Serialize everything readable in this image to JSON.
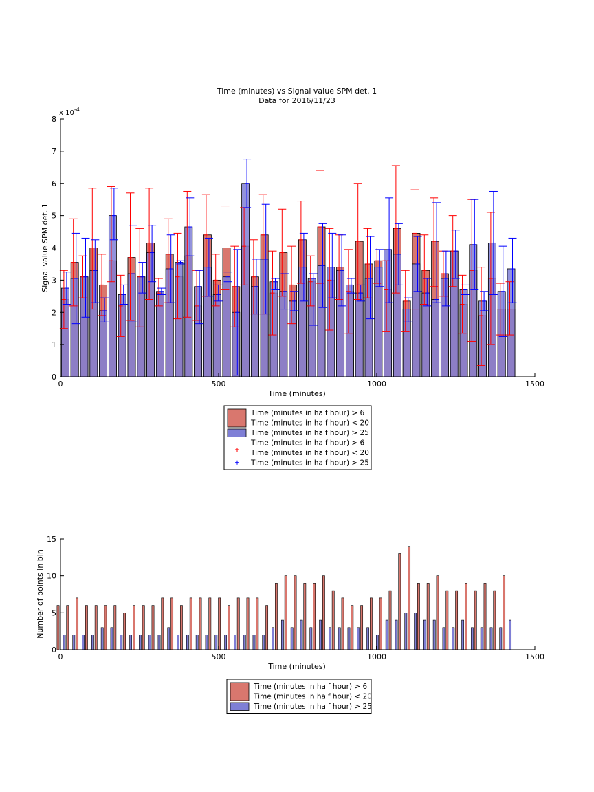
{
  "figure_colors": {
    "red_bar": "#d9776e",
    "blue_bar": "#7f7fd6",
    "red_err": "#ff0000",
    "blue_err": "#0000ff",
    "bar_edge": "#000000"
  },
  "chart_data": [
    {
      "type": "bar",
      "title": "Time (minutes) vs Signal value SPM det. 1",
      "subtitle": "Data for 2016/11/23",
      "xlabel": "Time (minutes)",
      "ylabel": "Signal value SPM det. 1",
      "exponent_label": "x 10",
      "exponent_power": "-4",
      "xlim": [
        0,
        1500
      ],
      "ylim": [
        0,
        8
      ],
      "xticks": [
        0,
        500,
        1000,
        1500
      ],
      "yticks": [
        0,
        1,
        2,
        3,
        4,
        5,
        6,
        7,
        8
      ],
      "x_centers": [
        15,
        45,
        75,
        105,
        135,
        165,
        195,
        225,
        255,
        285,
        315,
        345,
        375,
        405,
        435,
        465,
        495,
        525,
        555,
        585,
        615,
        645,
        675,
        705,
        735,
        765,
        795,
        825,
        855,
        885,
        915,
        945,
        975,
        1005,
        1035,
        1065,
        1095,
        1125,
        1155,
        1185,
        1215,
        1245,
        1275,
        1305,
        1335,
        1365,
        1395,
        1425
      ],
      "series": [
        {
          "name": "Time (minutes in half hour) > 6\nTime (minutes in half hour) < 20",
          "values": [
            2.4,
            3.55,
            3.1,
            4.0,
            2.85,
            3.6,
            2.2,
            3.7,
            3.1,
            4.15,
            2.6,
            3.8,
            3.1,
            3.75,
            2.2,
            4.4,
            3.0,
            4.0,
            2.8,
            4.05,
            3.1,
            4.4,
            2.6,
            3.85,
            2.85,
            4.25,
            2.95,
            4.65,
            3.0,
            3.4,
            2.65,
            4.2,
            3.5,
            3.6,
            2.7,
            4.6,
            2.35,
            4.45,
            3.3,
            4.2,
            3.2,
            3.9,
            2.25,
            3.3,
            1.9,
            3.05,
            2.1,
            2.1
          ],
          "err_low": [
            1.5,
            2.2,
            2.45,
            2.1,
            1.9,
            2.95,
            1.25,
            1.75,
            1.55,
            2.4,
            2.2,
            2.3,
            1.8,
            1.85,
            1.75,
            2.5,
            2.2,
            2.7,
            1.55,
            2.85,
            1.95,
            1.95,
            1.3,
            2.5,
            1.65,
            2.9,
            2.2,
            2.9,
            1.45,
            2.4,
            1.35,
            2.4,
            2.45,
            2.9,
            1.4,
            2.6,
            1.4,
            2.1,
            2.25,
            2.8,
            2.5,
            2.8,
            1.35,
            1.1,
            0.35,
            1.0,
            1.3,
            1.3
          ],
          "err_high": [
            3.3,
            4.9,
            3.75,
            5.85,
            3.8,
            5.9,
            3.15,
            5.7,
            4.6,
            5.85,
            3.05,
            4.9,
            4.45,
            5.75,
            3.3,
            5.65,
            3.8,
            5.3,
            4.05,
            5.25,
            4.25,
            5.65,
            3.9,
            5.2,
            4.05,
            5.45,
            3.75,
            6.4,
            4.6,
            4.4,
            3.95,
            6.0,
            4.6,
            4.0,
            3.6,
            6.55,
            3.3,
            5.8,
            4.4,
            5.55,
            3.9,
            5.0,
            3.15,
            5.5,
            3.4,
            5.1,
            2.9,
            2.95
          ]
        },
        {
          "name": "Time (minutes in half hour) > 25",
          "values": [
            2.75,
            3.05,
            3.1,
            3.3,
            2.05,
            5.0,
            2.55,
            3.2,
            3.1,
            3.85,
            2.65,
            3.35,
            3.55,
            4.65,
            2.8,
            3.4,
            2.55,
            3.1,
            2.0,
            6.0,
            2.8,
            3.65,
            2.95,
            2.65,
            2.35,
            3.4,
            3.05,
            3.45,
            3.4,
            3.3,
            2.85,
            2.6,
            3.05,
            3.4,
            3.95,
            3.8,
            2.1,
            3.5,
            2.6,
            2.4,
            3.05,
            3.9,
            2.7,
            4.1,
            2.35,
            4.15,
            2.65,
            3.35
          ],
          "err_low": [
            2.25,
            1.65,
            1.85,
            2.3,
            1.7,
            4.25,
            2.25,
            1.7,
            2.6,
            2.95,
            2.55,
            2.3,
            3.5,
            3.75,
            1.65,
            2.5,
            2.35,
            2.95,
            0.05,
            5.25,
            1.95,
            1.95,
            2.7,
            2.1,
            2.05,
            2.35,
            1.6,
            2.15,
            2.45,
            2.2,
            2.6,
            2.35,
            1.8,
            2.8,
            2.3,
            2.85,
            1.7,
            2.65,
            2.2,
            2.3,
            2.2,
            3.05,
            2.55,
            2.7,
            2.05,
            2.55,
            1.25,
            2.3
          ],
          "err_high": [
            3.25,
            4.45,
            4.3,
            4.25,
            2.45,
            5.85,
            2.85,
            4.7,
            3.55,
            4.7,
            2.75,
            4.4,
            3.6,
            5.55,
            3.3,
            4.3,
            2.85,
            3.25,
            3.95,
            6.75,
            3.65,
            5.35,
            3.05,
            3.2,
            2.65,
            4.45,
            3.2,
            4.75,
            4.45,
            4.4,
            3.05,
            2.85,
            4.35,
            3.95,
            5.55,
            4.75,
            2.45,
            4.35,
            3.05,
            5.4,
            3.9,
            4.55,
            2.85,
            5.5,
            2.65,
            5.75,
            4.05,
            4.3
          ]
        }
      ],
      "legend": {
        "placement": "bottom-center",
        "entries": [
          {
            "kind": "patch",
            "color": "#d9776e",
            "line1": "Time (minutes in half hour) > 6",
            "line2": "Time (minutes in half hour) < 20"
          },
          {
            "kind": "patch",
            "color": "#7f7fd6",
            "line1": "Time (minutes in half hour) > 25",
            "line2": ""
          },
          {
            "kind": "marker",
            "color": "#ff0000",
            "line1": "Time (minutes in half hour) > 6",
            "line2": "Time (minutes in half hour) < 20"
          },
          {
            "kind": "marker",
            "color": "#0000ff",
            "line1": "Time (minutes in half hour) > 25",
            "line2": ""
          }
        ]
      }
    },
    {
      "type": "bar",
      "title": "",
      "xlabel": "Time (minutes)",
      "ylabel": "Number of points in bin",
      "xlim": [
        0,
        1500
      ],
      "ylim": [
        0,
        15
      ],
      "xticks": [
        0,
        500,
        1000,
        1500
      ],
      "yticks": [
        0,
        5,
        10,
        15
      ],
      "x_centers": [
        15,
        45,
        75,
        105,
        135,
        165,
        195,
        225,
        255,
        285,
        315,
        345,
        375,
        405,
        435,
        465,
        495,
        525,
        555,
        585,
        615,
        645,
        675,
        705,
        735,
        765,
        795,
        825,
        855,
        885,
        915,
        945,
        975,
        1005,
        1035,
        1065,
        1095,
        1125,
        1155,
        1185,
        1215,
        1245,
        1275,
        1305,
        1335,
        1365,
        1395,
        1425
      ],
      "series": [
        {
          "name": "Time (minutes in half hour) > 6\nTime (minutes in half hour) < 20",
          "values": [
            6,
            6,
            7,
            6,
            6,
            6,
            6,
            5,
            6,
            6,
            6,
            7,
            7,
            6,
            7,
            7,
            7,
            7,
            6,
            7,
            7,
            7,
            6,
            9,
            10,
            10,
            9,
            9,
            10,
            8,
            7,
            6,
            6,
            7,
            7,
            8,
            13,
            14,
            9,
            9,
            10,
            8,
            8,
            9,
            8,
            9,
            8,
            10
          ]
        },
        {
          "name": "Time (minutes in half hour) > 25",
          "values": [
            2,
            2,
            2,
            2,
            3,
            3,
            2,
            2,
            2,
            2,
            2,
            3,
            2,
            2,
            2,
            2,
            2,
            2,
            2,
            2,
            2,
            2,
            3,
            4,
            3,
            4,
            3,
            4,
            3,
            3,
            3,
            3,
            3,
            2,
            4,
            4,
            5,
            5,
            4,
            4,
            3,
            3,
            4,
            3,
            3,
            3,
            3,
            4
          ]
        }
      ],
      "legend": {
        "placement": "bottom-center",
        "entries": [
          {
            "kind": "patch",
            "color": "#d9776e",
            "line1": "Time (minutes in half hour) > 6",
            "line2": "Time (minutes in half hour) < 20"
          },
          {
            "kind": "patch",
            "color": "#7f7fd6",
            "line1": "Time (minutes in half hour) > 25",
            "line2": ""
          }
        ]
      }
    }
  ]
}
